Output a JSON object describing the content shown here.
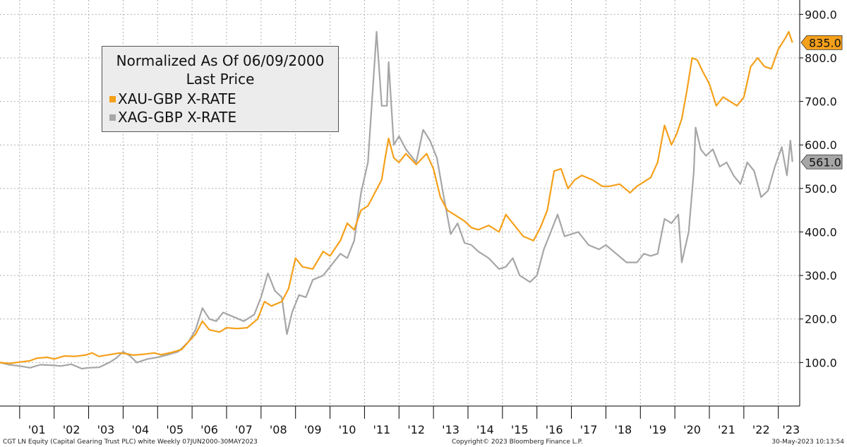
{
  "chart_data": {
    "type": "line",
    "legend": {
      "title_line1": "Normalized As Of 06/09/2000",
      "title_line2": "Last Price",
      "placement": "top-left"
    },
    "series": [
      {
        "name": "XAU-GBP X-RATE",
        "color": "#f5a01a",
        "last_label": "835.0",
        "points": [
          [
            2000.43,
            100
          ],
          [
            2000.7,
            98
          ],
          [
            2001.0,
            101
          ],
          [
            2001.3,
            104
          ],
          [
            2001.5,
            110
          ],
          [
            2001.8,
            112
          ],
          [
            2002.0,
            108
          ],
          [
            2002.3,
            115
          ],
          [
            2002.6,
            114
          ],
          [
            2002.9,
            117
          ],
          [
            2003.1,
            122
          ],
          [
            2003.3,
            114
          ],
          [
            2003.6,
            118
          ],
          [
            2003.9,
            122
          ],
          [
            2004.1,
            120
          ],
          [
            2004.3,
            117
          ],
          [
            2004.6,
            119
          ],
          [
            2004.9,
            122
          ],
          [
            2005.1,
            118
          ],
          [
            2005.4,
            123
          ],
          [
            2005.7,
            130
          ],
          [
            2005.9,
            148
          ],
          [
            2006.1,
            165
          ],
          [
            2006.3,
            195
          ],
          [
            2006.5,
            175
          ],
          [
            2006.8,
            170
          ],
          [
            2007.0,
            180
          ],
          [
            2007.3,
            178
          ],
          [
            2007.6,
            180
          ],
          [
            2007.9,
            200
          ],
          [
            2008.1,
            240
          ],
          [
            2008.3,
            230
          ],
          [
            2008.6,
            240
          ],
          [
            2008.8,
            270
          ],
          [
            2009.0,
            340
          ],
          [
            2009.2,
            320
          ],
          [
            2009.5,
            315
          ],
          [
            2009.8,
            355
          ],
          [
            2010.0,
            345
          ],
          [
            2010.3,
            380
          ],
          [
            2010.5,
            420
          ],
          [
            2010.7,
            405
          ],
          [
            2010.9,
            450
          ],
          [
            2011.1,
            460
          ],
          [
            2011.3,
            490
          ],
          [
            2011.5,
            520
          ],
          [
            2011.6,
            570
          ],
          [
            2011.7,
            615
          ],
          [
            2011.85,
            570
          ],
          [
            2012.0,
            560
          ],
          [
            2012.2,
            580
          ],
          [
            2012.5,
            555
          ],
          [
            2012.8,
            580
          ],
          [
            2013.0,
            545
          ],
          [
            2013.2,
            480
          ],
          [
            2013.4,
            450
          ],
          [
            2013.6,
            440
          ],
          [
            2013.9,
            425
          ],
          [
            2014.1,
            410
          ],
          [
            2014.3,
            405
          ],
          [
            2014.6,
            415
          ],
          [
            2014.9,
            400
          ],
          [
            2015.1,
            440
          ],
          [
            2015.3,
            420
          ],
          [
            2015.6,
            390
          ],
          [
            2015.9,
            380
          ],
          [
            2016.1,
            410
          ],
          [
            2016.3,
            450
          ],
          [
            2016.5,
            540
          ],
          [
            2016.7,
            545
          ],
          [
            2016.9,
            500
          ],
          [
            2017.1,
            520
          ],
          [
            2017.3,
            530
          ],
          [
            2017.6,
            520
          ],
          [
            2017.9,
            505
          ],
          [
            2018.1,
            505
          ],
          [
            2018.4,
            510
          ],
          [
            2018.7,
            490
          ],
          [
            2018.9,
            505
          ],
          [
            2019.1,
            515
          ],
          [
            2019.3,
            525
          ],
          [
            2019.5,
            560
          ],
          [
            2019.7,
            645
          ],
          [
            2019.9,
            600
          ],
          [
            2020.05,
            625
          ],
          [
            2020.2,
            660
          ],
          [
            2020.35,
            725
          ],
          [
            2020.5,
            800
          ],
          [
            2020.65,
            795
          ],
          [
            2020.8,
            770
          ],
          [
            2021.0,
            740
          ],
          [
            2021.2,
            690
          ],
          [
            2021.4,
            710
          ],
          [
            2021.6,
            700
          ],
          [
            2021.8,
            690
          ],
          [
            2022.0,
            710
          ],
          [
            2022.2,
            780
          ],
          [
            2022.4,
            800
          ],
          [
            2022.6,
            780
          ],
          [
            2022.8,
            775
          ],
          [
            2023.0,
            820
          ],
          [
            2023.2,
            845
          ],
          [
            2023.3,
            860
          ],
          [
            2023.41,
            835
          ]
        ]
      },
      {
        "name": "XAG-GBP X-RATE",
        "color": "#a6a6a6",
        "last_label": "561.0",
        "points": [
          [
            2000.43,
            100
          ],
          [
            2000.7,
            95
          ],
          [
            2001.0,
            92
          ],
          [
            2001.3,
            88
          ],
          [
            2001.6,
            95
          ],
          [
            2001.9,
            94
          ],
          [
            2002.2,
            92
          ],
          [
            2002.5,
            96
          ],
          [
            2002.8,
            86
          ],
          [
            2003.0,
            88
          ],
          [
            2003.3,
            89
          ],
          [
            2003.6,
            100
          ],
          [
            2003.8,
            110
          ],
          [
            2004.0,
            125
          ],
          [
            2004.2,
            115
          ],
          [
            2004.4,
            100
          ],
          [
            2004.7,
            108
          ],
          [
            2005.0,
            112
          ],
          [
            2005.3,
            118
          ],
          [
            2005.6,
            125
          ],
          [
            2005.9,
            148
          ],
          [
            2006.1,
            175
          ],
          [
            2006.3,
            225
          ],
          [
            2006.5,
            200
          ],
          [
            2006.7,
            195
          ],
          [
            2006.9,
            215
          ],
          [
            2007.2,
            205
          ],
          [
            2007.5,
            195
          ],
          [
            2007.8,
            210
          ],
          [
            2008.0,
            250
          ],
          [
            2008.2,
            305
          ],
          [
            2008.4,
            265
          ],
          [
            2008.6,
            250
          ],
          [
            2008.75,
            165
          ],
          [
            2008.9,
            215
          ],
          [
            2009.1,
            255
          ],
          [
            2009.3,
            250
          ],
          [
            2009.5,
            290
          ],
          [
            2009.8,
            300
          ],
          [
            2010.0,
            320
          ],
          [
            2010.3,
            350
          ],
          [
            2010.5,
            340
          ],
          [
            2010.7,
            380
          ],
          [
            2010.9,
            490
          ],
          [
            2011.1,
            560
          ],
          [
            2011.3,
            800
          ],
          [
            2011.35,
            860
          ],
          [
            2011.5,
            690
          ],
          [
            2011.65,
            690
          ],
          [
            2011.7,
            790
          ],
          [
            2011.85,
            600
          ],
          [
            2012.0,
            620
          ],
          [
            2012.2,
            590
          ],
          [
            2012.5,
            560
          ],
          [
            2012.7,
            635
          ],
          [
            2012.9,
            610
          ],
          [
            2013.1,
            570
          ],
          [
            2013.3,
            480
          ],
          [
            2013.5,
            395
          ],
          [
            2013.7,
            420
          ],
          [
            2013.9,
            375
          ],
          [
            2014.1,
            370
          ],
          [
            2014.3,
            355
          ],
          [
            2014.6,
            340
          ],
          [
            2014.9,
            315
          ],
          [
            2015.1,
            320
          ],
          [
            2015.3,
            340
          ],
          [
            2015.5,
            300
          ],
          [
            2015.8,
            285
          ],
          [
            2016.0,
            300
          ],
          [
            2016.2,
            360
          ],
          [
            2016.4,
            400
          ],
          [
            2016.6,
            440
          ],
          [
            2016.8,
            390
          ],
          [
            2017.0,
            395
          ],
          [
            2017.2,
            400
          ],
          [
            2017.5,
            370
          ],
          [
            2017.8,
            360
          ],
          [
            2018.0,
            370
          ],
          [
            2018.3,
            350
          ],
          [
            2018.6,
            330
          ],
          [
            2018.9,
            330
          ],
          [
            2019.1,
            350
          ],
          [
            2019.3,
            345
          ],
          [
            2019.5,
            350
          ],
          [
            2019.7,
            430
          ],
          [
            2019.9,
            420
          ],
          [
            2020.1,
            440
          ],
          [
            2020.2,
            330
          ],
          [
            2020.4,
            400
          ],
          [
            2020.55,
            540
          ],
          [
            2020.6,
            640
          ],
          [
            2020.75,
            590
          ],
          [
            2020.9,
            575
          ],
          [
            2021.1,
            590
          ],
          [
            2021.3,
            550
          ],
          [
            2021.5,
            560
          ],
          [
            2021.7,
            530
          ],
          [
            2021.9,
            510
          ],
          [
            2022.1,
            560
          ],
          [
            2022.3,
            540
          ],
          [
            2022.5,
            480
          ],
          [
            2022.7,
            495
          ],
          [
            2022.9,
            550
          ],
          [
            2023.1,
            595
          ],
          [
            2023.25,
            530
          ],
          [
            2023.35,
            610
          ],
          [
            2023.41,
            561
          ]
        ]
      }
    ],
    "x_range": [
      2000.43,
      2023.62
    ],
    "ylim": [
      0,
      933
    ],
    "y_ticks": [
      "100.0",
      "200.0",
      "300.0",
      "400.0",
      "500.0",
      "600.0",
      "700.0",
      "800.0",
      "900.0"
    ],
    "y_tick_values": [
      100,
      200,
      300,
      400,
      500,
      600,
      700,
      800,
      900
    ],
    "x_tick_labels": [
      "'01",
      "'02",
      "'03",
      "'04",
      "'05",
      "'06",
      "'07",
      "'08",
      "'09",
      "'10",
      "'11",
      "'12",
      "'13",
      "'14",
      "'15",
      "'16",
      "'17",
      "'18",
      "'19",
      "'20",
      "'21",
      "'22",
      "'23"
    ],
    "grid": true
  },
  "footer": {
    "left": "CGT LN Equity (Capital Gearing Trust PLC) white  Weekly 07JUN2000-30MAY2023",
    "center": "Copyright© 2023 Bloomberg Finance L.P.",
    "right": "30-May-2023 10:13:54"
  }
}
